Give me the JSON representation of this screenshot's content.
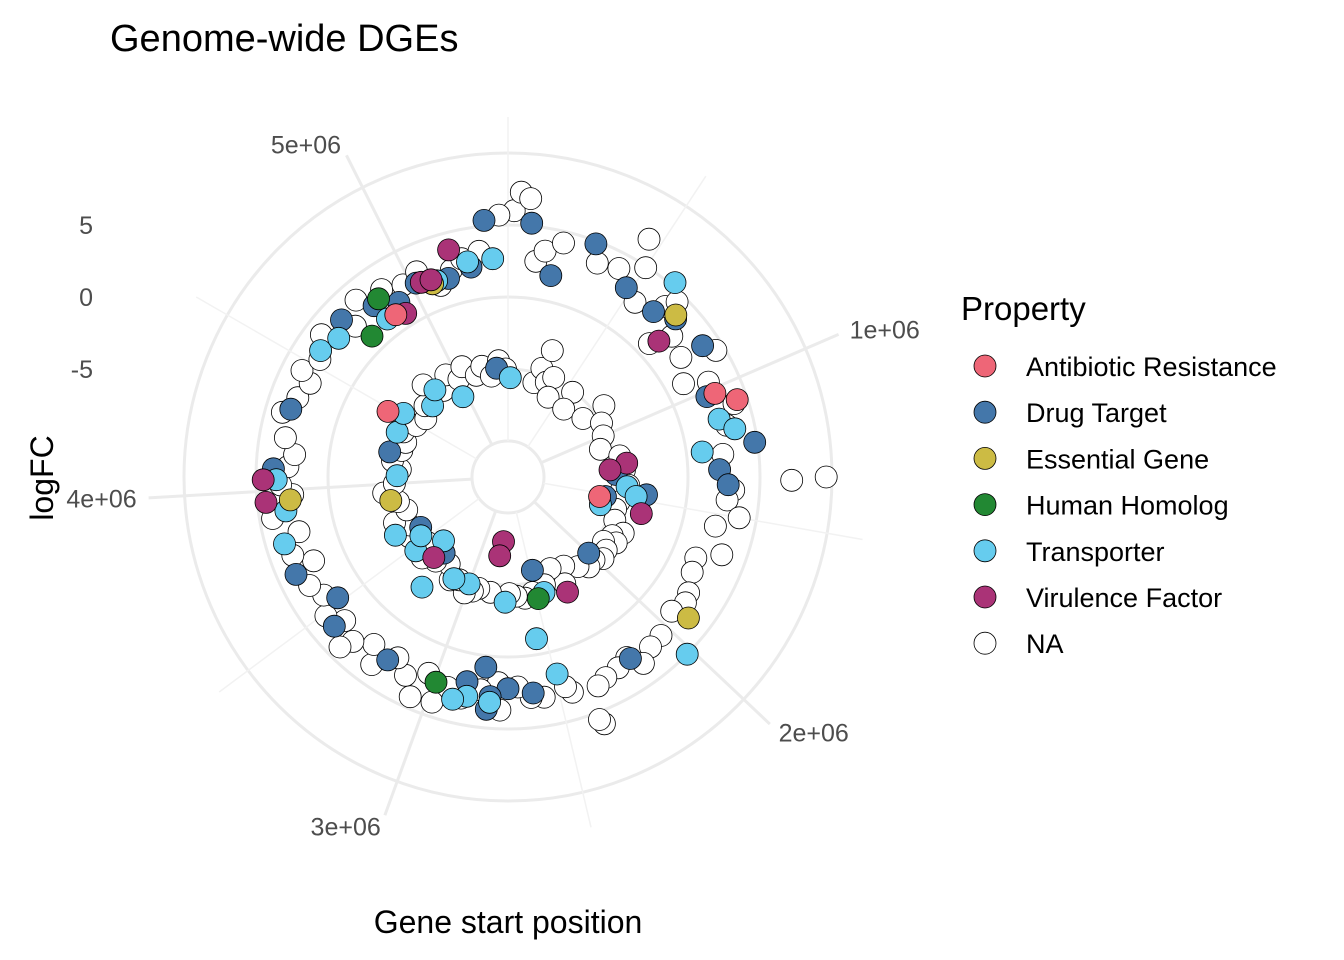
{
  "chart_data": {
    "type": "scatter",
    "coordinate_system": "polar",
    "title": "Genome-wide DGEs",
    "xlabel": "Gene start position",
    "ylabel": "logFC",
    "theta_axis": {
      "variable": "Gene start position",
      "range": [
        0,
        5400000
      ],
      "ticks": [
        1000000,
        2000000,
        3000000,
        4000000,
        5000000
      ],
      "tick_labels": [
        "1e+06",
        "2e+06",
        "3e+06",
        "4e+06",
        "5e+06"
      ]
    },
    "r_axis": {
      "variable": "logFC",
      "range": [
        -12.5,
        12.5
      ],
      "ticks": [
        -5,
        0,
        5
      ],
      "tick_labels": [
        "-5",
        "0",
        "5"
      ],
      "grid_rings": [
        -10,
        -5,
        0,
        5,
        10
      ]
    },
    "grid": true,
    "legend": {
      "title": "Property",
      "placement": "right",
      "entries": [
        {
          "label": "Antibiotic Resistance",
          "color": "#EE6677"
        },
        {
          "label": "Drug Target",
          "color": "#4477AA"
        },
        {
          "label": "Essential Gene",
          "color": "#CCBB44"
        },
        {
          "label": "Human Homolog",
          "color": "#228833"
        },
        {
          "label": "Transporter",
          "color": "#66CCEE"
        },
        {
          "label": "Virulence Factor",
          "color": "#AA3377"
        },
        {
          "label": "NA",
          "color": "#FFFFFF"
        }
      ]
    },
    "series": [
      {
        "name": "Antibiotic Resistance",
        "color": "#EE6677",
        "points": [
          [
            1020000,
            3.0
          ],
          [
            1070000,
            4.3
          ],
          [
            1530000,
            -6.0
          ],
          [
            4480000,
            -3.0
          ],
          [
            4880000,
            1.2
          ]
        ]
      },
      {
        "name": "Drug Target",
        "color": "#4477AA",
        "points": [
          [
            80000,
            5.2
          ],
          [
            180000,
            1.8
          ],
          [
            310000,
            4.8
          ],
          [
            480000,
            3.0
          ],
          [
            620000,
            2.8
          ],
          [
            700000,
            3.5
          ],
          [
            840000,
            3.8
          ],
          [
            1020000,
            2.4
          ],
          [
            1320000,
            2.2
          ],
          [
            1380000,
            2.8
          ],
          [
            1230000,
            4.8
          ],
          [
            1330000,
            -5.0
          ],
          [
            1460000,
            -2.8
          ],
          [
            1520000,
            -5.6
          ],
          [
            2000000,
            -4.8
          ],
          [
            2190000,
            2.7
          ],
          [
            2480000,
            -5.8
          ],
          [
            2600000,
            2.6
          ],
          [
            2700000,
            2.2
          ],
          [
            2770000,
            2.8
          ],
          [
            2780000,
            3.7
          ],
          [
            2800000,
            0.8
          ],
          [
            2870000,
            2.0
          ],
          [
            3200000,
            2.7
          ],
          [
            3300000,
            -5.6
          ],
          [
            3440000,
            3.4
          ],
          [
            3520000,
            2.0
          ],
          [
            3600000,
            -5.5
          ],
          [
            3680000,
            3.7
          ],
          [
            4080000,
            3.8
          ],
          [
            4230000,
            -4.1
          ],
          [
            4310000,
            3.3
          ],
          [
            4700000,
            3.4
          ],
          [
            4830000,
            2.6
          ],
          [
            4920000,
            1.8
          ],
          [
            5020000,
            2.4
          ],
          [
            5150000,
            1.9
          ],
          [
            5250000,
            2.3
          ],
          [
            5320000,
            5.4
          ],
          [
            5310000,
            -4.9
          ]
        ]
      },
      {
        "name": "Essential Gene",
        "color": "#CCBB44",
        "points": [
          [
            690000,
            3.7
          ],
          [
            1920000,
            3.4
          ],
          [
            3880000,
            -4.2
          ],
          [
            3960000,
            2.7
          ],
          [
            5080000,
            1.9
          ]
        ]
      },
      {
        "name": "Human Homolog",
        "color": "#228833",
        "points": [
          [
            2490000,
            -3.8
          ],
          [
            2990000,
            2.6
          ],
          [
            4740000,
            1.1
          ],
          [
            4860000,
            2.8
          ]
        ]
      },
      {
        "name": "Transporter",
        "color": "#66CCEE",
        "points": [
          [
            20000,
            -5.6
          ],
          [
            610000,
            5.3
          ],
          [
            1120000,
            2.7
          ],
          [
            1170000,
            3.6
          ],
          [
            1240000,
            1.1
          ],
          [
            1420000,
            -4.2
          ],
          [
            1480000,
            -3.5
          ],
          [
            1600000,
            -5.8
          ],
          [
            2020000,
            5.0
          ],
          [
            2440000,
            -4.1
          ],
          [
            2490000,
            1.6
          ],
          [
            2550000,
            -1.1
          ],
          [
            2720000,
            -3.8
          ],
          [
            2770000,
            3.2
          ],
          [
            2860000,
            3.0
          ],
          [
            2910000,
            3.4
          ],
          [
            3000000,
            -4.6
          ],
          [
            3120000,
            -4.5
          ],
          [
            3270000,
            -2.8
          ],
          [
            3380000,
            -6.2
          ],
          [
            3470000,
            -4.3
          ],
          [
            3540000,
            -5.2
          ],
          [
            3640000,
            -3.7
          ],
          [
            3800000,
            3.7
          ],
          [
            3920000,
            3.1
          ],
          [
            4040000,
            3.6
          ],
          [
            4060000,
            -4.8
          ],
          [
            4380000,
            -4.2
          ],
          [
            4520000,
            -4.0
          ],
          [
            4560000,
            3.2
          ],
          [
            4640000,
            2.7
          ],
          [
            4700000,
            -5.3
          ],
          [
            4800000,
            -4.6
          ],
          [
            4840000,
            1.3
          ],
          [
            4960000,
            -6.1
          ],
          [
            5100000,
            2.0
          ],
          [
            5240000,
            2.7
          ],
          [
            5340000,
            2.7
          ]
        ]
      },
      {
        "name": "Virulence Factor",
        "color": "#AA3377",
        "points": [
          [
            720000,
            1.6
          ],
          [
            1250000,
            -4.2
          ],
          [
            1290000,
            -5.4
          ],
          [
            1580000,
            -2.9
          ],
          [
            2290000,
            -3.5
          ],
          [
            2760000,
            -8.0
          ],
          [
            2790000,
            -7.0
          ],
          [
            3340000,
            -4.9
          ],
          [
            3960000,
            4.4
          ],
          [
            4040000,
            4.5
          ],
          [
            4920000,
            0.9
          ],
          [
            5040000,
            2.3
          ],
          [
            5080000,
            2.2
          ],
          [
            5180000,
            3.8
          ]
        ]
      },
      {
        "name": "NA",
        "color": "#FFFFFF",
        "points": [
          [
            20000,
            6.0
          ],
          [
            40000,
            7.3
          ],
          [
            70000,
            6.9
          ],
          [
            110000,
            2.6
          ],
          [
            140000,
            3.4
          ],
          [
            200000,
            4.2
          ],
          [
            230000,
            -5.7
          ],
          [
            260000,
            -4.6
          ],
          [
            290000,
            -3.2
          ],
          [
            330000,
            -5.4
          ],
          [
            340000,
            3.6
          ],
          [
            370000,
            -4.9
          ],
          [
            400000,
            -6.3
          ],
          [
            420000,
            3.9
          ],
          [
            460000,
            6.7
          ],
          [
            500000,
            4.9
          ],
          [
            540000,
            2.5
          ],
          [
            560000,
            -5.1
          ],
          [
            590000,
            -6.4
          ],
          [
            640000,
            3.6
          ],
          [
            660000,
            4.4
          ],
          [
            700000,
            1.0
          ],
          [
            740000,
            2.5
          ],
          [
            780000,
            -5.9
          ],
          [
            800000,
            -4.2
          ],
          [
            830000,
            2.1
          ],
          [
            880000,
            4.4
          ],
          [
            900000,
            -5.0
          ],
          [
            930000,
            1.3
          ],
          [
            970000,
            2.9
          ],
          [
            1000000,
            -5.3
          ],
          [
            1080000,
            4.0
          ],
          [
            1100000,
            -5.8
          ],
          [
            1150000,
            3.1
          ],
          [
            1190000,
            -4.6
          ],
          [
            1260000,
            2.5
          ],
          [
            1300000,
            -4.4
          ],
          [
            1350000,
            9.6
          ],
          [
            1360000,
            7.2
          ],
          [
            1400000,
            3.2
          ],
          [
            1410000,
            -4.1
          ],
          [
            1440000,
            2.8
          ],
          [
            1460000,
            -4.6
          ],
          [
            1500000,
            3.8
          ],
          [
            1540000,
            -4.6
          ],
          [
            1550000,
            2.3
          ],
          [
            1600000,
            -4.7
          ],
          [
            1650000,
            3.3
          ],
          [
            1680000,
            -4.5
          ],
          [
            1700000,
            1.7
          ],
          [
            1740000,
            -3.6
          ],
          [
            1760000,
            1.9
          ],
          [
            1790000,
            -4.2
          ],
          [
            1820000,
            -3.7
          ],
          [
            1840000,
            2.4
          ],
          [
            1860000,
            -4.5
          ],
          [
            1880000,
            2.6
          ],
          [
            1900000,
            -4.0
          ],
          [
            1940000,
            2.2
          ],
          [
            1960000,
            -3.8
          ],
          [
            2010000,
            -4.2
          ],
          [
            2040000,
            2.8
          ],
          [
            2070000,
            -4.1
          ],
          [
            2100000,
            2.9
          ],
          [
            2130000,
            -4.6
          ],
          [
            2160000,
            3.5
          ],
          [
            2200000,
            2.5
          ],
          [
            2220000,
            -5.2
          ],
          [
            2250000,
            2.8
          ],
          [
            2280000,
            -4.1
          ],
          [
            2310000,
            3.0
          ],
          [
            2330000,
            -5.5
          ],
          [
            2350000,
            3.3
          ],
          [
            2380000,
            5.9
          ],
          [
            2390000,
            5.5
          ],
          [
            2420000,
            -4.6
          ],
          [
            2450000,
            3.1
          ],
          [
            2470000,
            2.6
          ],
          [
            2520000,
            -4.3
          ],
          [
            2560000,
            3.0
          ],
          [
            2580000,
            -4.0
          ],
          [
            2610000,
            2.9
          ],
          [
            2640000,
            -4.2
          ],
          [
            2660000,
            2.1
          ],
          [
            2690000,
            -4.4
          ],
          [
            2730000,
            3.7
          ],
          [
            2740000,
            1.8
          ],
          [
            2810000,
            2.4
          ],
          [
            2830000,
            -4.4
          ],
          [
            2880000,
            3.2
          ],
          [
            2920000,
            -4.5
          ],
          [
            2940000,
            2.7
          ],
          [
            2960000,
            -4.2
          ],
          [
            2980000,
            4.0
          ],
          [
            3010000,
            -3.9
          ],
          [
            3030000,
            2.2
          ],
          [
            3060000,
            4.2
          ],
          [
            3080000,
            -4.6
          ],
          [
            3110000,
            3.0
          ],
          [
            3140000,
            -4.3
          ],
          [
            3170000,
            2.2
          ],
          [
            3210000,
            -5.2
          ],
          [
            3240000,
            3.6
          ],
          [
            3280000,
            2.4
          ],
          [
            3310000,
            -4.8
          ],
          [
            3350000,
            3.2
          ],
          [
            3370000,
            4.1
          ],
          [
            3400000,
            -4.3
          ],
          [
            3430000,
            2.6
          ],
          [
            3460000,
            -5.3
          ],
          [
            3490000,
            3.4
          ],
          [
            3560000,
            2.7
          ],
          [
            3580000,
            -4.5
          ],
          [
            3620000,
            3.2
          ],
          [
            3660000,
            -4.9
          ],
          [
            3700000,
            2.2
          ],
          [
            3720000,
            -4.0
          ],
          [
            3750000,
            3.4
          ],
          [
            3780000,
            -5.1
          ],
          [
            3830000,
            2.5
          ],
          [
            3860000,
            -4.7
          ],
          [
            3900000,
            4.1
          ],
          [
            3940000,
            -3.8
          ],
          [
            3980000,
            2.5
          ],
          [
            4000000,
            -4.6
          ],
          [
            4020000,
            3.3
          ],
          [
            4090000,
            2.8
          ],
          [
            4110000,
            -5.0
          ],
          [
            4140000,
            2.4
          ],
          [
            4170000,
            -4.4
          ],
          [
            4200000,
            3.2
          ],
          [
            4260000,
            -4.9
          ],
          [
            4290000,
            3.8
          ],
          [
            4330000,
            -5.0
          ],
          [
            4360000,
            3.1
          ],
          [
            4400000,
            -4.6
          ],
          [
            4430000,
            2.7
          ],
          [
            4460000,
            3.6
          ],
          [
            4490000,
            -5.2
          ],
          [
            4530000,
            2.9
          ],
          [
            4580000,
            -5.5
          ],
          [
            4610000,
            3.8
          ],
          [
            4660000,
            -4.9
          ],
          [
            4720000,
            2.4
          ],
          [
            4760000,
            -3.8
          ],
          [
            4790000,
            3.7
          ],
          [
            4850000,
            -5.0
          ],
          [
            4890000,
            3.2
          ],
          [
            4930000,
            -4.2
          ],
          [
            4970000,
            2.7
          ],
          [
            5000000,
            -4.9
          ],
          [
            5040000,
            3.1
          ],
          [
            5060000,
            -4.2
          ],
          [
            5110000,
            1.6
          ],
          [
            5140000,
            -5.1
          ],
          [
            5170000,
            2.4
          ],
          [
            5200000,
            -4.6
          ],
          [
            5220000,
            3.0
          ],
          [
            5260000,
            -5.4
          ],
          [
            5290000,
            3.3
          ],
          [
            5330000,
            -4.4
          ],
          [
            5370000,
            5.7
          ],
          [
            5380000,
            -5.0
          ]
        ]
      }
    ]
  }
}
